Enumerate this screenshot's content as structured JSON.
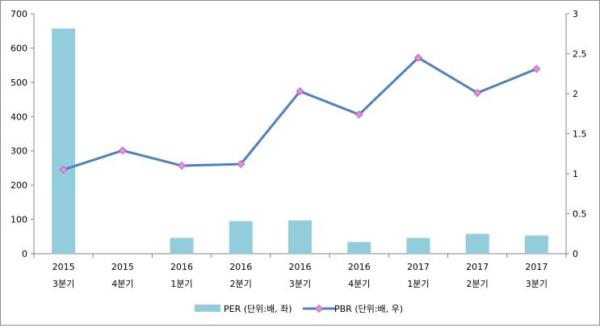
{
  "chart_data": {
    "type": "bar+line",
    "categories": [
      [
        "2015",
        "3분기"
      ],
      [
        "2015",
        "4분기"
      ],
      [
        "2016",
        "1분기"
      ],
      [
        "2016",
        "2분기"
      ],
      [
        "2016",
        "3분기"
      ],
      [
        "2016",
        "4분기"
      ],
      [
        "2017",
        "1분기"
      ],
      [
        "2017",
        "2분기"
      ],
      [
        "2017",
        "3분기"
      ]
    ],
    "series": [
      {
        "name": "PER (단위:배, 좌)",
        "type": "bar",
        "axis": "left",
        "color": "#92cddc",
        "values": [
          657,
          0,
          46,
          95,
          97,
          34,
          46,
          58,
          53
        ]
      },
      {
        "name": "PBR (단위:배, 우)",
        "type": "line",
        "axis": "right",
        "color": "#4f81bd",
        "marker_color": "#e98ae6",
        "values": [
          1.05,
          1.29,
          1.1,
          1.12,
          2.03,
          1.74,
          2.45,
          2.01,
          2.31
        ]
      }
    ],
    "y_left": {
      "min": 0,
      "max": 700,
      "ticks": [
        "0",
        "100",
        "200",
        "300",
        "400",
        "500",
        "600",
        "700"
      ],
      "values": [
        0,
        100,
        200,
        300,
        400,
        500,
        600,
        700
      ]
    },
    "y_right": {
      "min": 0,
      "max": 3,
      "ticks": [
        "0",
        "0.5",
        "1",
        "1.5",
        "2",
        "2.5",
        "3"
      ],
      "values": [
        0,
        0.5,
        1,
        1.5,
        2,
        2.5,
        3
      ]
    },
    "grid": false,
    "legend_position": "bottom"
  }
}
